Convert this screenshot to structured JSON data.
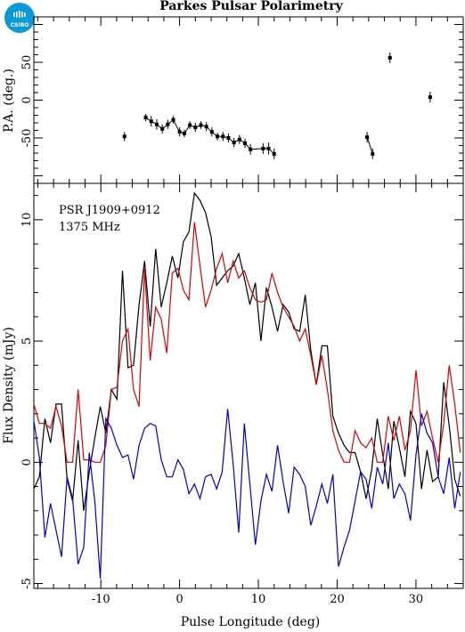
{
  "title": "Parkes Pulsar Polarimetry",
  "logo": {
    "text": "CSIRO",
    "color": "#0a9ad8"
  },
  "chart_data": [
    {
      "type": "scatter",
      "panel": "top",
      "ylabel": "P.A. (deg.)",
      "xlim": [
        -18.5,
        36
      ],
      "ylim": [
        -110,
        110
      ],
      "yticks": [
        -50,
        0,
        50
      ],
      "series": [
        {
          "color": "#000000",
          "connected_segments": true,
          "points": [
            {
              "x": -7.0,
              "y": -48,
              "err": 6
            },
            {
              "x": -4.3,
              "y": -23,
              "err": 5
            },
            {
              "x": -3.6,
              "y": -28,
              "err": 7
            },
            {
              "x": -2.9,
              "y": -32,
              "err": 7
            },
            {
              "x": -2.2,
              "y": -38,
              "err": 6
            },
            {
              "x": -1.5,
              "y": -32,
              "err": 6
            },
            {
              "x": -0.8,
              "y": -26,
              "err": 5
            },
            {
              "x": 0.0,
              "y": -42,
              "err": 6
            },
            {
              "x": 0.6,
              "y": -44,
              "err": 5
            },
            {
              "x": 1.3,
              "y": -33,
              "err": 5
            },
            {
              "x": 2.0,
              "y": -36,
              "err": 6
            },
            {
              "x": 2.7,
              "y": -33,
              "err": 5
            },
            {
              "x": 3.4,
              "y": -35,
              "err": 6
            },
            {
              "x": 4.1,
              "y": -42,
              "err": 6
            },
            {
              "x": 4.8,
              "y": -48,
              "err": 5
            },
            {
              "x": 5.5,
              "y": -48,
              "err": 6
            },
            {
              "x": 6.2,
              "y": -50,
              "err": 6
            },
            {
              "x": 6.9,
              "y": -56,
              "err": 6
            },
            {
              "x": 7.6,
              "y": -52,
              "err": 6
            },
            {
              "x": 8.3,
              "y": -57,
              "err": 6
            },
            {
              "x": 9.0,
              "y": -65,
              "err": 7
            },
            {
              "x": 10.6,
              "y": -64,
              "err": 7
            },
            {
              "x": 11.3,
              "y": -64,
              "err": 8
            },
            {
              "x": 12.0,
              "y": -71,
              "err": 7
            },
            {
              "x": 23.8,
              "y": -49,
              "err": 7
            },
            {
              "x": 24.5,
              "y": -71,
              "err": 7
            },
            {
              "x": 26.7,
              "y": 56,
              "err": 7
            },
            {
              "x": 31.8,
              "y": 4,
              "err": 7
            }
          ],
          "segments": [
            [
              0,
              0
            ],
            [
              1,
              23
            ],
            [
              24,
              25
            ],
            [
              26,
              26
            ],
            [
              27,
              27
            ]
          ]
        }
      ]
    },
    {
      "type": "line",
      "panel": "bottom",
      "xlabel": "Pulse Longitude (deg)",
      "ylabel": "Flux Density (mJy)",
      "xlim": [
        -18.5,
        36
      ],
      "ylim": [
        -5.2,
        11.5
      ],
      "xticks": [
        -10,
        0,
        10,
        20,
        30
      ],
      "yticks": [
        -5,
        0,
        5,
        10
      ],
      "annotations": [
        "PSR J1909+0912",
        "1375 MHz"
      ],
      "x_start": -18.5,
      "x_step": 0.703,
      "series": [
        {
          "color": "#000000",
          "values": [
            -1.1,
            -0.6,
            1.8,
            0.8,
            2.4,
            2.4,
            -0.7,
            -1.6,
            0.9,
            -2.0,
            -0.4,
            1.0,
            2.3,
            1.2,
            3.0,
            2.6,
            7.9,
            3.9,
            4.0,
            6.5,
            8.3,
            5.6,
            8.8,
            6.4,
            7.4,
            8.5,
            7.6,
            9.1,
            9.5,
            11.1,
            10.8,
            10.3,
            9.3,
            7.3,
            7.6,
            7.9,
            8.1,
            8.6,
            7.6,
            6.5,
            7.4,
            5.0,
            7.2,
            6.4,
            5.4,
            6.5,
            6.2,
            5.5,
            5.4,
            6.9,
            4.6,
            3.2,
            4.8,
            4.8,
            1.9,
            1.2,
            0.7,
            0.4,
            0.4,
            -0.4,
            -1.5,
            -0.3,
            1.8,
            0.3,
            -1.1,
            1.7,
            0.6,
            -0.6,
            2.1,
            1.6,
            -1.1,
            0.5,
            -0.8,
            -0.6,
            3.3,
            1.5,
            -0.7,
            -1.4,
            0.6,
            0.3,
            0.5,
            1.8,
            -0.9,
            1.0,
            0.5,
            -0.7,
            0.5,
            1.2,
            0.9,
            1.0,
            -0.4,
            -0.3,
            1.1,
            0.7,
            0.6,
            0.8,
            1.3,
            0.4,
            0.3,
            0.7,
            1.1,
            -0.9,
            -0.8,
            0.3,
            1.0,
            0.1,
            0.5,
            -1.0,
            0.0,
            -0.8,
            0.6,
            0.7,
            0.3,
            0.9,
            0.1,
            -0.8,
            0.6,
            -0.3,
            0.3,
            0.0
          ]
        },
        {
          "color": "#dd0000",
          "values": [
            2.4,
            1.6,
            1.6,
            1.4,
            2.3,
            1.5,
            0.0,
            0.0,
            3.0,
            0.1,
            0.1,
            0.0,
            0.0,
            0.7,
            3.0,
            3.1,
            5.0,
            5.5,
            3.0,
            2.3,
            8.0,
            4.2,
            6.4,
            5.9,
            4.5,
            7.8,
            8.0,
            7.1,
            6.7,
            9.9,
            8.1,
            6.4,
            7.1,
            8.0,
            8.6,
            7.4,
            8.3,
            7.6,
            7.9,
            7.2,
            6.7,
            6.6,
            6.7,
            7.8,
            7.0,
            6.4,
            6.0,
            5.6,
            5.0,
            5.5,
            4.4,
            3.2,
            4.4,
            3.0,
            1.3,
            0.5,
            0.0,
            0.0,
            1.3,
            0.8,
            0.6,
            1.0,
            0.0,
            0.0,
            1.9,
            0.9,
            1.9,
            0.5,
            1.3,
            3.8,
            1.5,
            2.1,
            1.0,
            0.0,
            1.6,
            4.0,
            2.4,
            0.4,
            1.2,
            2.5,
            0.3,
            3.1,
            2.7,
            1.2,
            0.8,
            1.5,
            0.3,
            0.6,
            2.0,
            1.6,
            0.5,
            1.5,
            0.3,
            2.0,
            0.8,
            0.6,
            1.7,
            0.0,
            1.2,
            1.6,
            0.4,
            0.4,
            1.3,
            0.1,
            2.2,
            1.0,
            0.6,
            0.2,
            1.7,
            0.6,
            0.7,
            0.9,
            0.5,
            0.8,
            1.1,
            0.8,
            0.4,
            1.0,
            0.6,
            0.2
          ]
        },
        {
          "color": "#0000cc",
          "values": [
            1.7,
            0.2,
            -3.1,
            -1.7,
            -2.8,
            -3.9,
            -0.6,
            -1.5,
            -4.2,
            -3.5,
            0.4,
            -1.6,
            -4.8,
            1.8,
            1.4,
            0.7,
            0.2,
            0.3,
            -0.7,
            0.7,
            1.4,
            1.6,
            1.5,
            0.1,
            -0.6,
            -0.6,
            0.1,
            -0.3,
            -1.3,
            -0.9,
            -1.5,
            -0.6,
            -0.5,
            -1.1,
            -0.4,
            2.2,
            -0.1,
            -2.9,
            1.6,
            -0.9,
            -3.4,
            -1.6,
            -0.5,
            -1.2,
            0.7,
            -0.8,
            -2.1,
            -0.2,
            -0.5,
            -1.0,
            -2.6,
            -1.8,
            -0.9,
            -1.7,
            -0.5,
            -4.3,
            -3.5,
            -2.8,
            -1.6,
            -0.4,
            -0.7,
            -1.9,
            -0.2,
            -0.9,
            0.8,
            -1.5,
            -0.9,
            -1.3,
            -2.4,
            0.3,
            2.0,
            1.2,
            0.8,
            -0.6,
            -1.3,
            0.2,
            -1.9,
            -0.4,
            -1.0,
            -2.1,
            0.9,
            0.5,
            0.1,
            -1.4,
            -0.3,
            -2.0,
            -0.6,
            -1.6,
            -0.3,
            -0.7,
            -1.2,
            -0.2,
            -0.7,
            -2.0,
            -1.5,
            -0.4,
            0.2,
            -1.3,
            -0.6,
            -1.0,
            -0.4,
            0.1,
            -0.8,
            -1.7,
            -0.5,
            -0.9,
            -1.5,
            -0.3,
            -1.2,
            -0.7,
            -0.2,
            -0.8,
            -1.1,
            -0.5,
            -0.9,
            -0.4,
            -1.3,
            -0.6,
            -0.8,
            -0.3
          ]
        }
      ]
    }
  ]
}
